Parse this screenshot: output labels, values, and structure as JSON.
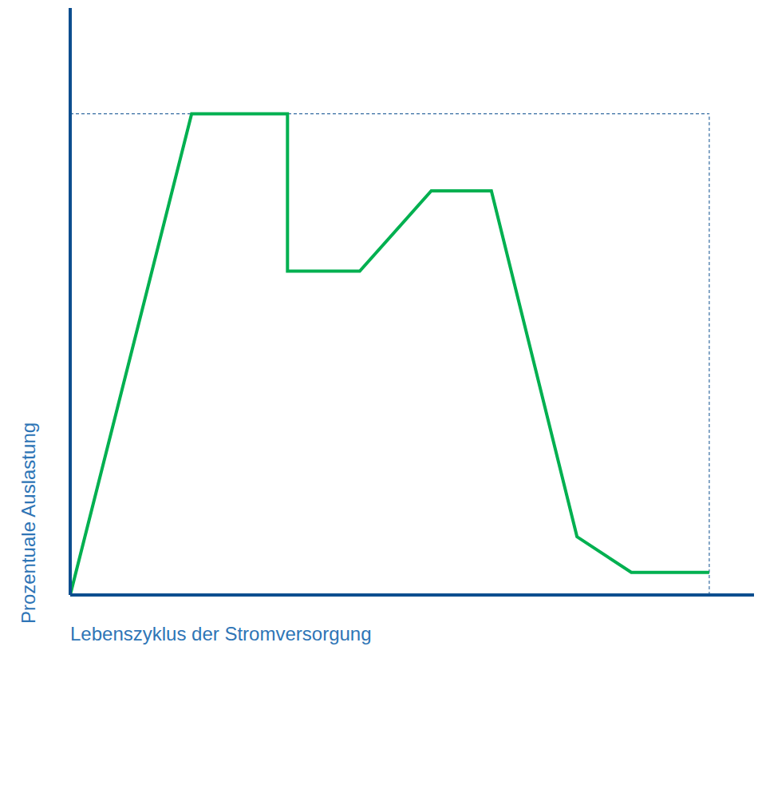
{
  "chart_data": {
    "type": "line",
    "x_label": "Lebenszyklus der Stromversorgung",
    "y_label": "Prozentuale Auslastung",
    "x": [
      0,
      19,
      34,
      34,
      45.3,
      56.5,
      65.9,
      79.3,
      87.8,
      100
    ],
    "values": [
      0,
      100,
      100,
      67.3,
      67.3,
      84,
      84,
      12.1,
      4.7,
      4.7
    ],
    "color": "#00b050",
    "xlim": [
      0,
      107
    ],
    "ylim": [
      0,
      122
    ],
    "reference_level": 100,
    "reference_x": 100,
    "tick_labels": false,
    "grid": false
  }
}
